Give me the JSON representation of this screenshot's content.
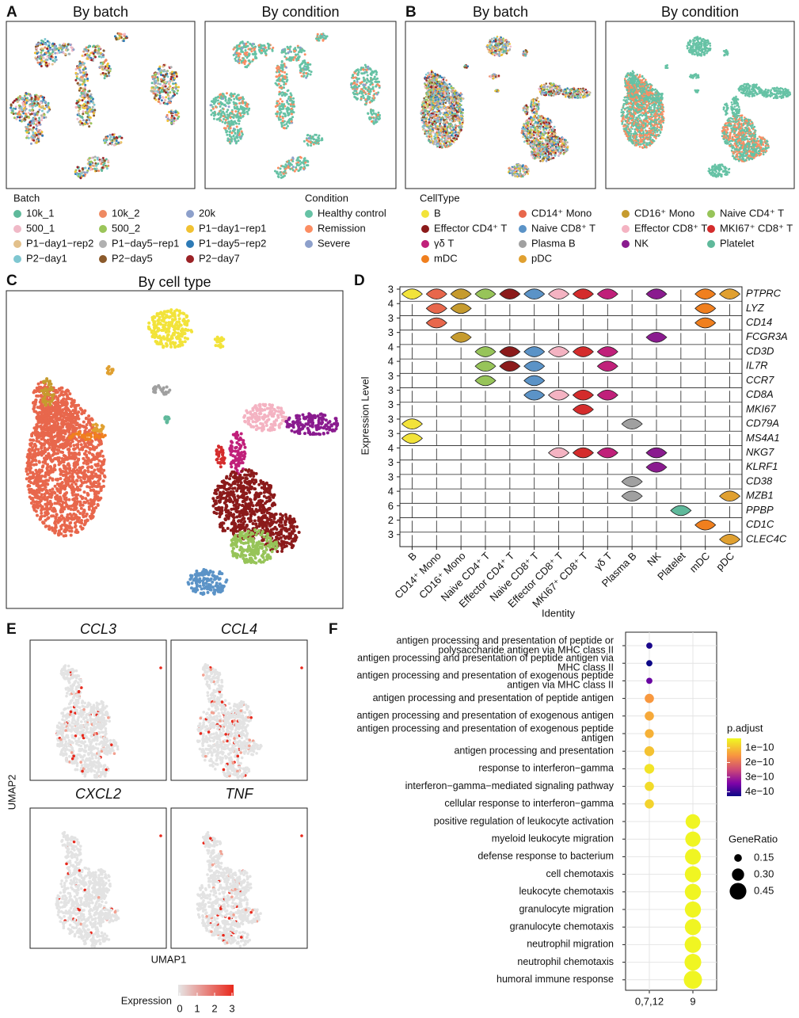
{
  "chart_data": [
    {
      "type": "umap",
      "label": "A",
      "titles": [
        "By batch",
        "By condition"
      ]
    },
    {
      "type": "umap",
      "label": "B",
      "titles": [
        "By batch",
        "By condition"
      ]
    },
    {
      "type": "legend",
      "title": "Batch",
      "items": [
        {
          "name": "10k_1",
          "color": "#5fb99b"
        },
        {
          "name": "10k_2",
          "color": "#ef8a62"
        },
        {
          "name": "20k",
          "color": "#8da0cb"
        },
        {
          "name": "500_1",
          "color": "#f0b9c7"
        },
        {
          "name": "500_2",
          "color": "#9bc55a"
        },
        {
          "name": "P1−day1−rep1",
          "color": "#f1c232"
        },
        {
          "name": "P1−day1−rep2",
          "color": "#e2c08b"
        },
        {
          "name": "P1−day5−rep1",
          "color": "#b0b0b0"
        },
        {
          "name": "P1−day5−rep2",
          "color": "#2e7bb6"
        },
        {
          "name": "P2−day1",
          "color": "#7fc7d1"
        },
        {
          "name": "P2−day5",
          "color": "#8b5a2b"
        },
        {
          "name": "P2−day7",
          "color": "#9b2226"
        }
      ]
    },
    {
      "type": "legend",
      "title": "Condition",
      "items": [
        {
          "name": "Healthy control",
          "color": "#66c2a5"
        },
        {
          "name": "Remission",
          "color": "#fc8d62"
        },
        {
          "name": "Severe",
          "color": "#8da0cb"
        }
      ]
    },
    {
      "type": "legend",
      "title": "CellType",
      "items": [
        {
          "name": "B",
          "color": "#f2e33a"
        },
        {
          "name": "CD14⁺ Mono",
          "color": "#e8674c"
        },
        {
          "name": "CD16⁺ Mono",
          "color": "#c69b2e"
        },
        {
          "name": "Naive CD4⁺ T",
          "color": "#97c459"
        },
        {
          "name": "Effector CD4⁺ T",
          "color": "#8b1a1a"
        },
        {
          "name": "Naive CD8⁺ T",
          "color": "#5b93c7"
        },
        {
          "name": "Effector CD8⁺ T",
          "color": "#f4b3c2"
        },
        {
          "name": "MKI67⁺ CD8⁺ T",
          "color": "#d42c2c"
        },
        {
          "name": "γδ T",
          "color": "#c0207a"
        },
        {
          "name": "Plasma B",
          "color": "#a0a0a0"
        },
        {
          "name": "NK",
          "color": "#8a1b8f"
        },
        {
          "name": "Platelet",
          "color": "#5fb99b"
        },
        {
          "name": "mDC",
          "color": "#f07f1e"
        },
        {
          "name": "pDC",
          "color": "#e0a030"
        }
      ]
    },
    {
      "type": "umap",
      "label": "C",
      "titles": [
        "By cell type"
      ]
    },
    {
      "type": "violin",
      "label": "D",
      "y_label": "Expression Level",
      "x_label": "Identity",
      "categories": [
        "B",
        "CD14⁺ Mono",
        "CD16⁺ Mono",
        "Naive CD4⁺ T",
        "Effector CD4⁺ T",
        "Naive CD8⁺ T",
        "Effector CD8⁺ T",
        "MKI67⁺ CD8⁺ T",
        "γδ T",
        "Plasma B",
        "NK",
        "Platelet",
        "mDC",
        "pDC"
      ],
      "genes": [
        {
          "name": "PTPRC",
          "max": 3,
          "expressed": [
            0,
            1,
            2,
            3,
            4,
            5,
            6,
            7,
            8,
            10,
            12,
            13
          ]
        },
        {
          "name": "LYZ",
          "max": 4,
          "expressed": [
            1,
            2,
            12
          ]
        },
        {
          "name": "CD14",
          "max": 3,
          "expressed": [
            1,
            12
          ]
        },
        {
          "name": "FCGR3A",
          "max": 3,
          "expressed": [
            2,
            10
          ]
        },
        {
          "name": "CD3D",
          "max": 4,
          "expressed": [
            3,
            4,
            5,
            6,
            7,
            8
          ]
        },
        {
          "name": "IL7R",
          "max": 4,
          "expressed": [
            3,
            4,
            5,
            8
          ]
        },
        {
          "name": "CCR7",
          "max": 3,
          "expressed": [
            3,
            5
          ]
        },
        {
          "name": "CD8A",
          "max": 3,
          "expressed": [
            5,
            6,
            7,
            8
          ]
        },
        {
          "name": "MKI67",
          "max": 3,
          "expressed": [
            7
          ]
        },
        {
          "name": "CD79A",
          "max": 3,
          "expressed": [
            0,
            9
          ]
        },
        {
          "name": "MS4A1",
          "max": 3,
          "expressed": [
            0
          ]
        },
        {
          "name": "NKG7",
          "max": 4,
          "expressed": [
            6,
            7,
            8,
            10
          ]
        },
        {
          "name": "KLRF1",
          "max": 3,
          "expressed": [
            10
          ]
        },
        {
          "name": "CD38",
          "max": 3,
          "expressed": [
            9
          ]
        },
        {
          "name": "MZB1",
          "max": 4,
          "expressed": [
            9,
            13
          ]
        },
        {
          "name": "PPBP",
          "max": 6,
          "expressed": [
            11
          ]
        },
        {
          "name": "CD1C",
          "max": 2,
          "expressed": [
            12
          ]
        },
        {
          "name": "CLEC4C",
          "max": 3,
          "expressed": [
            13
          ]
        }
      ]
    },
    {
      "type": "feature",
      "label": "E",
      "genes": [
        "CCL3",
        "CCL4",
        "CXCL2",
        "TNF"
      ],
      "x_label": "UMAP1",
      "y_label": "UMAP2",
      "legend_title": "Expression",
      "clim": [
        0,
        3
      ],
      "ticks": [
        0,
        1,
        2,
        3
      ]
    },
    {
      "type": "dot",
      "label": "F",
      "categories": [
        "0,7,12",
        "9"
      ],
      "terms": [
        [
          "antigen processing and presentation of peptide or",
          "polysaccharide antigen via MHC class II"
        ],
        [
          "antigen processing and presentation of peptide antigen via",
          "MHC class II"
        ],
        [
          "antigen processing and presentation of exogenous peptide",
          "antigen via MHC class II"
        ],
        [
          "antigen processing and presentation of peptide antigen"
        ],
        [
          "antigen processing and presentation of exogenous antigen"
        ],
        [
          "antigen processing and presentation of exogenous peptide",
          "antigen"
        ],
        [
          "antigen processing and presentation"
        ],
        [
          "response to interferon−gamma"
        ],
        [
          "interferon−gamma−mediated signaling pathway"
        ],
        [
          "cellular response to interferon−gamma"
        ],
        [
          "positive regulation of leukocyte activation"
        ],
        [
          "myeloid leukocyte migration"
        ],
        [
          "defense response to bacterium"
        ],
        [
          "cell chemotaxis"
        ],
        [
          "leukocyte chemotaxis"
        ],
        [
          "granulocyte migration"
        ],
        [
          "granulocyte chemotaxis"
        ],
        [
          "neutrophil migration"
        ],
        [
          "neutrophil chemotaxis"
        ],
        [
          "humoral immune response"
        ]
      ],
      "term_category": [
        "0,7,12",
        "0,7,12",
        "0,7,12",
        "0,7,12",
        "0,7,12",
        "0,7,12",
        "0,7,12",
        "0,7,12",
        "0,7,12",
        "0,7,12",
        "9",
        "9",
        "9",
        "9",
        "9",
        "9",
        "9",
        "9",
        "9",
        "9"
      ],
      "gene_ratio": [
        0.1,
        0.1,
        0.1,
        0.2,
        0.2,
        0.19,
        0.22,
        0.22,
        0.2,
        0.2,
        0.38,
        0.4,
        0.42,
        0.43,
        0.43,
        0.43,
        0.43,
        0.44,
        0.45,
        0.5
      ],
      "p_adjust": [
        4.2e-10,
        4.3e-10,
        3.6e-10,
        1.5e-10,
        1.3e-10,
        1.2e-10,
        1e-10,
        6e-11,
        7e-11,
        8e-11,
        4e-11,
        4e-11,
        4e-11,
        4e-11,
        4e-11,
        4e-11,
        4e-11,
        4e-11,
        4e-11,
        4e-11
      ],
      "color_title": "p.adjust",
      "clim": [
        3.5e-11,
        4.3e-10
      ],
      "color_ticks": [
        {
          "value": 1e-10,
          "label": "1e−10"
        },
        {
          "value": 2e-10,
          "label": "2e−10"
        },
        {
          "value": 3e-10,
          "label": "3e−10"
        },
        {
          "value": 4e-10,
          "label": "4e−10"
        }
      ],
      "size_title": "GeneRatio",
      "size_ticks": [
        0.15,
        {
          "value": 0.3,
          "label": "0.30"
        },
        0.45
      ]
    }
  ]
}
